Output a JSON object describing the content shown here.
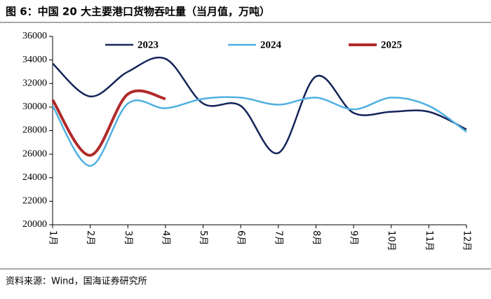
{
  "chart_data": {
    "type": "line",
    "title": "图 6：中国 20 大主要港口货物吞吐量（当月值，万吨）",
    "source": "资料来源：Wind，国海证券研究所",
    "categories": [
      "1月",
      "2月",
      "3月",
      "4月",
      "5月",
      "6月",
      "7月",
      "8月",
      "9月",
      "10月",
      "11月",
      "12月"
    ],
    "series": [
      {
        "name": "2023",
        "color": "#16245a",
        "values": [
          33700,
          30900,
          33000,
          34100,
          30300,
          30100,
          26100,
          32600,
          29500,
          29600,
          29600,
          28100
        ]
      },
      {
        "name": "2024",
        "color": "#4fb0e0",
        "values": [
          30100,
          25000,
          30300,
          29900,
          30700,
          30800,
          30200,
          30800,
          29800,
          30800,
          30100,
          27900
        ]
      },
      {
        "name": "2025",
        "color": "#b02a2a",
        "values": [
          30600,
          25900,
          31100,
          30700,
          null,
          null,
          null,
          null,
          null,
          null,
          null,
          null
        ]
      }
    ],
    "ylim": [
      20000,
      36000
    ],
    "yticks": [
      20000,
      22000,
      24000,
      26000,
      28000,
      30000,
      32000,
      34000,
      36000
    ],
    "grid": false
  }
}
